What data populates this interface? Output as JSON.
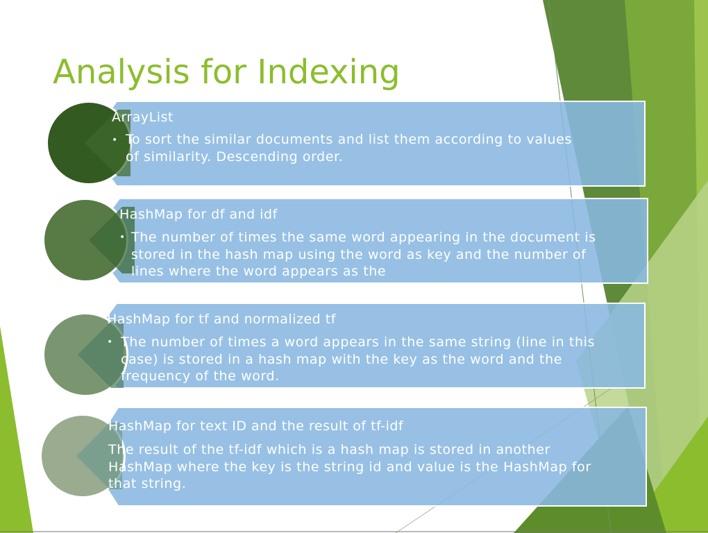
{
  "slide": {
    "title": "Analysis for Indexing",
    "colors": {
      "accent_green": "#8cbd2e",
      "banner_blue": "#89b7e0",
      "circle_1": "#335a20",
      "circle_2": "#587a45",
      "circle_3": "#7a9670",
      "circle_4": "#9aab90"
    },
    "items": [
      {
        "heading": "ArrayList",
        "text": "To sort the similar documents and list them according to values of similarity. Descending order.",
        "bullet": "•"
      },
      {
        "heading": "HashMap for df and idf",
        "text": "The number of times the same word appearing in the document is stored in the hash map using the word as key and the number of lines where the word appears as the",
        "bullet": "•"
      },
      {
        "heading": "HashMap for tf and normalized tf",
        "text": "The number of times a word appears in the same string (line in this case) is stored in a hash map with the key as the word and the frequency of the word.",
        "bullet": "•"
      },
      {
        "heading": "HashMap for text ID and the result of tf-idf",
        "text": "The result of the tf-idf which is a hash map is stored in another HashMap where the key is the string id and value is the HashMap for that string."
      }
    ]
  }
}
